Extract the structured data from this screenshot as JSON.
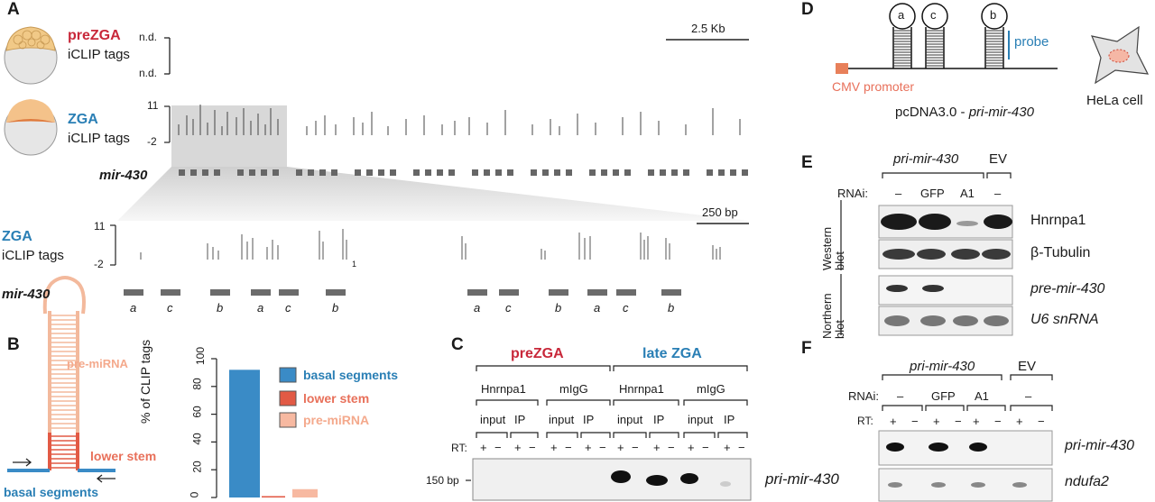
{
  "panels": {
    "A": "A",
    "B": "B",
    "C": "C",
    "D": "D",
    "E": "E",
    "F": "F"
  },
  "panelA": {
    "prezga": "preZGA",
    "iclip": "iCLIP tags",
    "nd1": "n.d.",
    "nd2": "n.d.",
    "scale1": "2.5 Kb",
    "zga": "ZGA",
    "y11": "11",
    "ym2": "-2",
    "mir": "mir-430",
    "scale2": "250 bp",
    "zga2": "ZGA",
    "y11b": "11",
    "ym2b": "-2",
    "mir2": "mir-430",
    "subtick": "1",
    "segments": [
      "a",
      "c",
      "b",
      "a",
      "c",
      "b",
      "a",
      "c",
      "b",
      "a",
      "c",
      "b"
    ]
  },
  "panelB": {
    "premirna": "pre-miRNA",
    "lowerstem": "lower stem",
    "basal": "basal segments",
    "ylabel": "% of CLIP tags",
    "ticks": [
      "0",
      "20",
      "40",
      "60",
      "80",
      "100"
    ],
    "legend": [
      "basal segments",
      "lower stem",
      "pre-miRNA"
    ]
  },
  "chart_data": {
    "type": "bar",
    "categories": [
      "basal segments",
      "lower stem",
      "pre-miRNA"
    ],
    "values": [
      92,
      1,
      6
    ],
    "ylabel": "% of CLIP tags",
    "ylim": [
      0,
      100
    ],
    "colors": [
      "#3a8bc6",
      "#e25a45",
      "#f7b9a1"
    ]
  },
  "panelC": {
    "prezga": "preZGA",
    "latezga": "late ZGA",
    "ab": [
      "Hnrnpa1",
      "mIgG",
      "Hnrnpa1",
      "mIgG"
    ],
    "samples": [
      "input",
      "IP",
      "input",
      "IP",
      "input",
      "IP",
      "input",
      "IP"
    ],
    "rt": "RT:",
    "plus": "+",
    "minus": "−",
    "size": "150 bp",
    "product": "pri-mir-430"
  },
  "panelD": {
    "loops": [
      "a",
      "c",
      "b"
    ],
    "probe": "probe",
    "cmv": "CMV promoter",
    "construct": "pcDNA3.0 - ",
    "constructIt": "pri-mir-430",
    "hela": "HeLa cell"
  },
  "panelE": {
    "pri": "pri-mir-430",
    "ev": "EV",
    "rnai": "RNAi:",
    "conds": [
      "–",
      "GFP",
      "A1",
      "–"
    ],
    "western": "Western blot",
    "northern": "Northern blot",
    "bands": [
      "Hnrnpa1",
      "β-Tubulin",
      "pre-mir-430",
      "U6 snRNA"
    ]
  },
  "panelF": {
    "pri": "pri-mir-430",
    "ev": "EV",
    "rnai": "RNAi:",
    "conds": [
      "–",
      "GFP",
      "A1",
      "–"
    ],
    "rt": "RT:",
    "plus": "+",
    "minus": "−",
    "bands": [
      "pri-mir-430",
      "ndufa2"
    ]
  }
}
